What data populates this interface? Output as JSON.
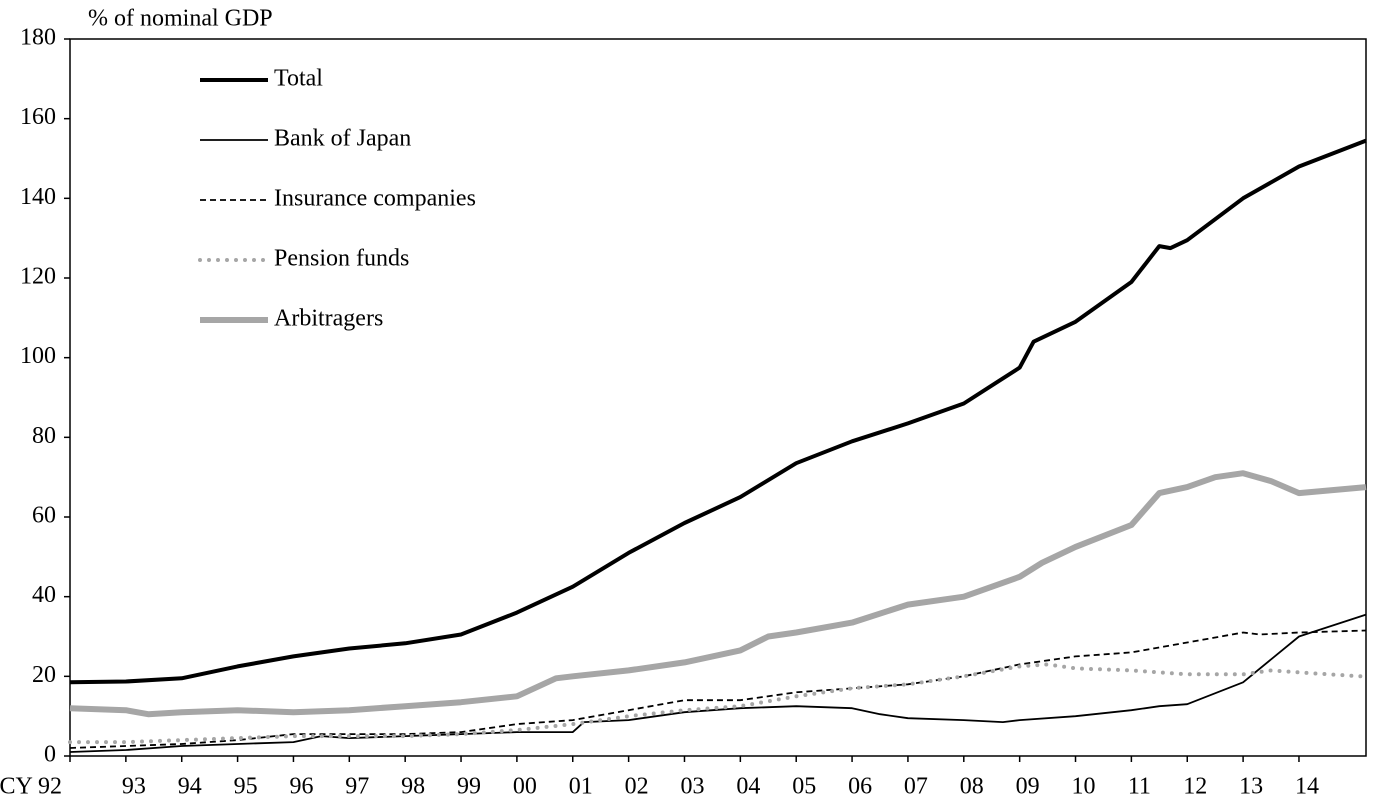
{
  "chart_data": {
    "type": "line",
    "y_label": "% of nominal GDP",
    "xlim": [
      1992,
      2015.2
    ],
    "xticks": [
      {
        "value": 1992,
        "label": "CY 92"
      },
      {
        "value": 1993,
        "label": "93"
      },
      {
        "value": 1994,
        "label": "94"
      },
      {
        "value": 1995,
        "label": "95"
      },
      {
        "value": 1996,
        "label": "96"
      },
      {
        "value": 1997,
        "label": "97"
      },
      {
        "value": 1998,
        "label": "98"
      },
      {
        "value": 1999,
        "label": "99"
      },
      {
        "value": 2000,
        "label": "00"
      },
      {
        "value": 2001,
        "label": "01"
      },
      {
        "value": 2002,
        "label": "02"
      },
      {
        "value": 2003,
        "label": "03"
      },
      {
        "value": 2004,
        "label": "04"
      },
      {
        "value": 2005,
        "label": "05"
      },
      {
        "value": 2006,
        "label": "06"
      },
      {
        "value": 2007,
        "label": "07"
      },
      {
        "value": 2008,
        "label": "08"
      },
      {
        "value": 2009,
        "label": "09"
      },
      {
        "value": 2010,
        "label": "10"
      },
      {
        "value": 2011,
        "label": "11"
      },
      {
        "value": 2012,
        "label": "12"
      },
      {
        "value": 2013,
        "label": "13"
      },
      {
        "value": 2014,
        "label": "14"
      }
    ],
    "ylim": [
      0,
      180
    ],
    "yticks": [
      0,
      20,
      40,
      60,
      80,
      100,
      120,
      140,
      160,
      180
    ],
    "grid": false,
    "legend": "upper-left",
    "series": [
      {
        "name": "Total",
        "color": "#000000",
        "width": 4,
        "dash": "solid",
        "x": [
          1992,
          1993,
          1994,
          1995,
          1996,
          1997,
          1998,
          1999,
          2000,
          2001,
          2002,
          2003,
          2004,
          2005,
          2006,
          2007,
          2008,
          2009,
          2009.25,
          2010,
          2011,
          2011.5,
          2011.7,
          2012,
          2013,
          2014,
          2015.2
        ],
        "values": [
          18.5,
          18.7,
          19.5,
          22.5,
          25,
          27,
          28.3,
          30.5,
          36,
          42.5,
          51,
          58.5,
          65,
          73.5,
          79,
          83.5,
          88.5,
          97.5,
          104,
          109,
          119,
          128,
          127.5,
          129.5,
          140,
          148,
          154.5
        ]
      },
      {
        "name": "Bank of Japan",
        "color": "#000000",
        "width": 1.8,
        "dash": "solid",
        "x": [
          1992,
          1993,
          1994,
          1995,
          1996,
          1996.5,
          1997,
          1998,
          1999,
          2000,
          2001,
          2001.2,
          2002,
          2003,
          2004,
          2005,
          2006,
          2006.5,
          2007,
          2008,
          2008.7,
          2009,
          2010,
          2011,
          2011.5,
          2012,
          2013,
          2014,
          2015.2
        ],
        "values": [
          1,
          1.5,
          2.5,
          3,
          3.5,
          5,
          4.5,
          5,
          5.5,
          6,
          6,
          8.5,
          9,
          11,
          12,
          12.5,
          12,
          10.5,
          9.5,
          9,
          8.5,
          9,
          10,
          11.5,
          12.5,
          13,
          18.5,
          30,
          35.5
        ]
      },
      {
        "name": "Insurance companies",
        "color": "#000000",
        "width": 1.8,
        "dash": "dashed",
        "x": [
          1992,
          1993,
          1994,
          1995,
          1996,
          1997,
          1998,
          1999,
          2000,
          2001,
          2002,
          2003,
          2004,
          2005,
          2006,
          2007,
          2008,
          2009,
          2010,
          2011,
          2012,
          2013,
          2013.3,
          2014,
          2015.2
        ],
        "values": [
          2,
          2.5,
          3,
          4,
          5.5,
          5.5,
          5.5,
          6,
          8,
          9,
          11.5,
          14,
          14,
          16,
          17,
          18,
          20,
          23,
          25,
          26,
          28.5,
          31,
          30.5,
          31,
          31.5
        ]
      },
      {
        "name": "Pension funds",
        "color": "#a6a6a6",
        "width": 4,
        "dash": "dotted",
        "x": [
          1992,
          1993,
          1994,
          1995,
          1996,
          1997,
          1998,
          1999,
          2000,
          2001,
          2002,
          2003,
          2004,
          2005,
          2006,
          2007,
          2008,
          2009,
          2009.5,
          2010,
          2011,
          2012,
          2013,
          2013.5,
          2014,
          2015.1
        ],
        "values": [
          3.5,
          3.5,
          4,
          4.5,
          5,
          5,
          5,
          5.5,
          6.5,
          8,
          10,
          11.5,
          12.5,
          15,
          17,
          18,
          20,
          22.5,
          23,
          22,
          21.5,
          20.5,
          20.5,
          21.5,
          21,
          20
        ]
      },
      {
        "name": "Arbitragers",
        "color": "#a6a6a6",
        "width": 6,
        "dash": "solid",
        "x": [
          1992,
          1993,
          1993.4,
          1994,
          1995,
          1996,
          1997,
          1998,
          1999,
          2000,
          2000.7,
          2001,
          2002,
          2003,
          2004,
          2004.5,
          2005,
          2006,
          2007,
          2008,
          2009,
          2009.4,
          2010,
          2011,
          2011.5,
          2012,
          2012.5,
          2013,
          2013.5,
          2014,
          2015.2
        ],
        "values": [
          12,
          11.5,
          10.5,
          11,
          11.5,
          11,
          11.5,
          12.5,
          13.5,
          15,
          19.5,
          20,
          21.5,
          23.5,
          26.5,
          30,
          31,
          33.5,
          38,
          40,
          45,
          48.5,
          52.5,
          58,
          66,
          67.5,
          70,
          71,
          69,
          66,
          67.5
        ]
      }
    ]
  }
}
